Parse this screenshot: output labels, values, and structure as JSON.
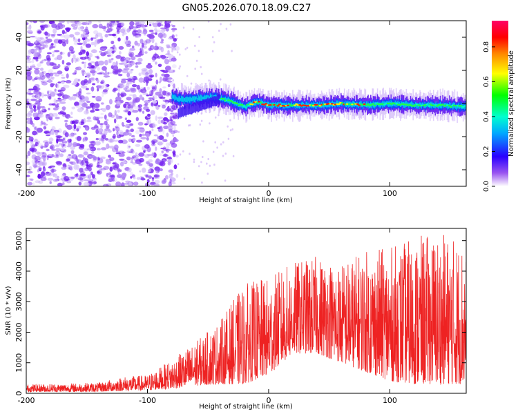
{
  "title": "GN05.2026.070.18.09.C27",
  "chart_data": [
    {
      "type": "heatmap",
      "name": "spectrogram",
      "xlabel": "Height of straight line (km)",
      "ylabel": "Frequency (Hz)",
      "xlim": [
        -200,
        163
      ],
      "ylim": [
        -50,
        50
      ],
      "xticks": [
        -200,
        -100,
        0,
        100
      ],
      "yticks": [
        -40,
        -20,
        0,
        20,
        40
      ],
      "noise_region_x": [
        -200,
        -80
      ],
      "signal_ridge": [
        {
          "x": -80,
          "f": 4
        },
        {
          "x": -70,
          "f": 2
        },
        {
          "x": -60,
          "f": 3
        },
        {
          "x": -45,
          "f": 4
        },
        {
          "x": -30,
          "f": 1
        },
        {
          "x": -20,
          "f": -2
        },
        {
          "x": -10,
          "f": 1
        },
        {
          "x": 0,
          "f": -1
        },
        {
          "x": 20,
          "f": -1
        },
        {
          "x": 40,
          "f": -1
        },
        {
          "x": 60,
          "f": 0
        },
        {
          "x": 80,
          "f": -1
        },
        {
          "x": 100,
          "f": 0
        },
        {
          "x": 120,
          "f": -1
        },
        {
          "x": 140,
          "f": -1
        },
        {
          "x": 163,
          "f": -2
        }
      ],
      "colorbar": {
        "label": "Normalized spectral amplitude",
        "range": [
          0,
          0.95
        ],
        "ticks": [
          0.0,
          0.2,
          0.4,
          0.6,
          0.8
        ]
      }
    },
    {
      "type": "line",
      "name": "snr",
      "xlabel": "Height of straight line (km)",
      "ylabel": "SNR (10 * v/v)",
      "xlim": [
        -200,
        163
      ],
      "ylim": [
        0,
        5400
      ],
      "xticks": [
        -200,
        -100,
        0,
        100
      ],
      "yticks": [
        0,
        1000,
        2000,
        3000,
        4000,
        5000
      ],
      "color": "#ee2222",
      "envelope": [
        {
          "x": -200,
          "lo": 50,
          "hi": 300
        },
        {
          "x": -140,
          "lo": 50,
          "hi": 350
        },
        {
          "x": -120,
          "lo": 80,
          "hi": 550
        },
        {
          "x": -100,
          "lo": 100,
          "hi": 600
        },
        {
          "x": -80,
          "lo": 150,
          "hi": 1100
        },
        {
          "x": -60,
          "lo": 250,
          "hi": 1700
        },
        {
          "x": -40,
          "lo": 300,
          "hi": 2400
        },
        {
          "x": -20,
          "lo": 300,
          "hi": 3600
        },
        {
          "x": 0,
          "lo": 600,
          "hi": 3800
        },
        {
          "x": 20,
          "lo": 1300,
          "hi": 4300
        },
        {
          "x": 40,
          "lo": 1300,
          "hi": 4500
        },
        {
          "x": 60,
          "lo": 1000,
          "hi": 4300
        },
        {
          "x": 80,
          "lo": 700,
          "hi": 4700
        },
        {
          "x": 100,
          "lo": 400,
          "hi": 4800
        },
        {
          "x": 120,
          "lo": 300,
          "hi": 5100
        },
        {
          "x": 140,
          "lo": 300,
          "hi": 5300
        },
        {
          "x": 163,
          "lo": 300,
          "hi": 5000
        }
      ]
    }
  ]
}
